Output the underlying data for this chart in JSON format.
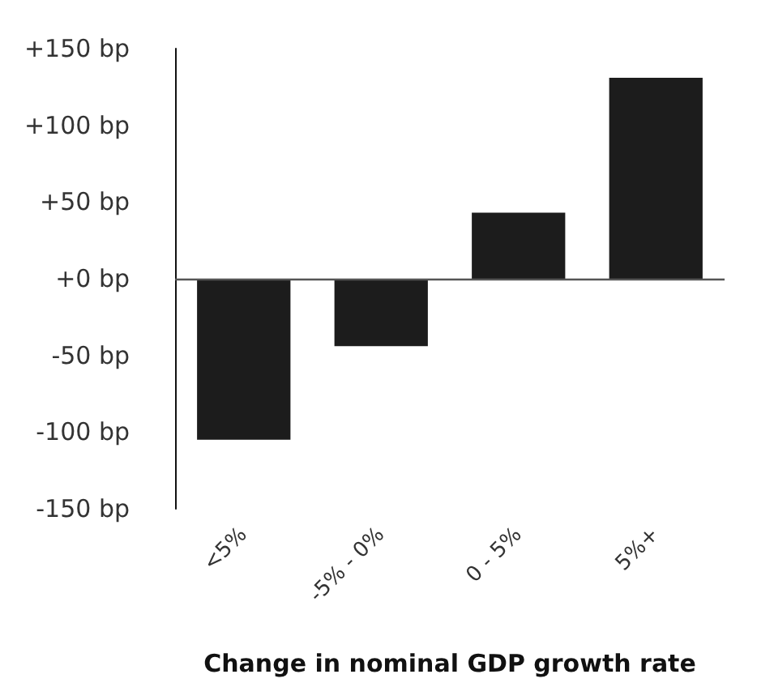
{
  "chart_data": {
    "type": "bar",
    "xlabel": "Change in nominal GDP growth rate",
    "categories": [
      "<5%",
      "-5% - 0%",
      "0 - 5%",
      "5%+"
    ],
    "values": [
      -105,
      -44,
      43,
      131
    ],
    "color": "#1c1c1c",
    "ylim": [
      -150,
      150
    ],
    "yticks": [
      {
        "value": -150,
        "label": "-150 bp"
      },
      {
        "value": -100,
        "label": "-100 bp"
      },
      {
        "value": -50,
        "label": "-50 bp"
      },
      {
        "value": 0,
        "label": "+0 bp"
      },
      {
        "value": 50,
        "label": "+50 bp"
      },
      {
        "value": 100,
        "label": "+100 bp"
      },
      {
        "value": 150,
        "label": "+150 bp"
      }
    ],
    "ref_lines": [
      {
        "axis": "y",
        "value": 0,
        "color": "#555555"
      }
    ],
    "grid": false
  }
}
